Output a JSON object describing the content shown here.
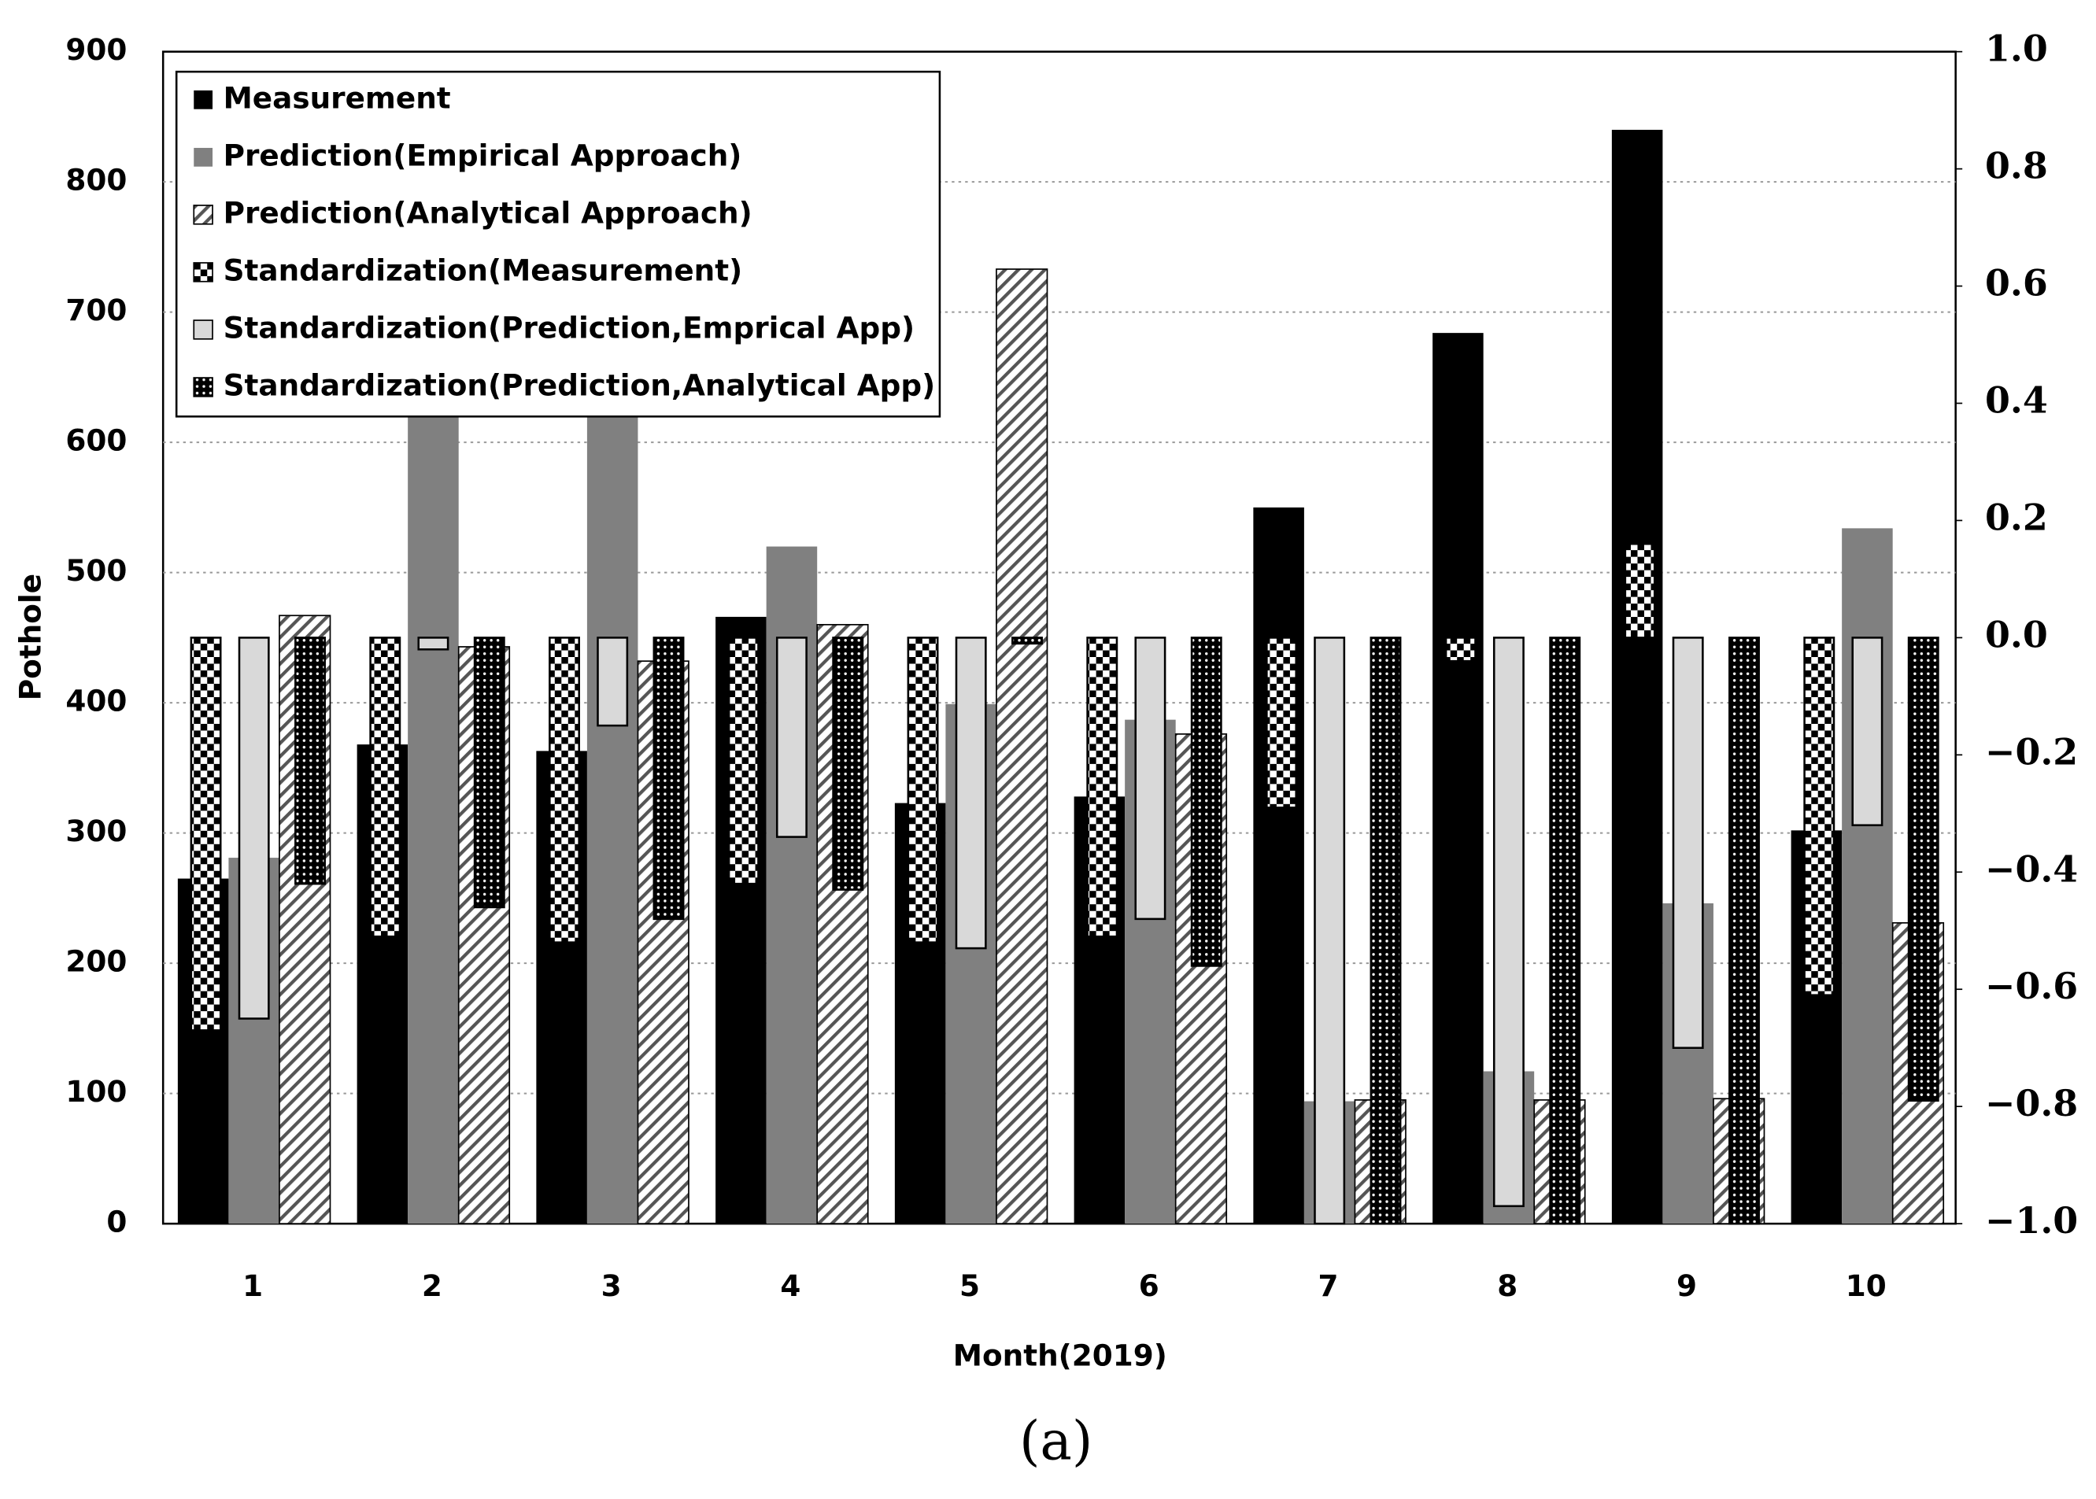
{
  "chart_data": {
    "type": "bar",
    "caption": "(a)",
    "x_label": "Month(2019)",
    "y_label": "Pothole",
    "categories": [
      "1",
      "2",
      "3",
      "4",
      "5",
      "6",
      "7",
      "8",
      "9",
      "10"
    ],
    "ylim": [
      0,
      900
    ],
    "yticks": [
      0,
      100,
      200,
      300,
      400,
      500,
      600,
      700,
      800,
      900
    ],
    "y2lim": [
      -1.0,
      1.0
    ],
    "y2ticks": [
      {
        "value": -1.0,
        "label": "−1.0"
      },
      {
        "value": -0.8,
        "label": "−0.8"
      },
      {
        "value": -0.6,
        "label": "−0.6"
      },
      {
        "value": -0.4,
        "label": "−0.4"
      },
      {
        "value": -0.2,
        "label": "−0.2"
      },
      {
        "value": 0,
        "label": "0.0"
      },
      {
        "value": 0.2,
        "label": "0.2"
      },
      {
        "value": 0.4,
        "label": "0.4"
      },
      {
        "value": 0.6,
        "label": "0.6"
      },
      {
        "value": 0.8,
        "label": "0.8"
      },
      {
        "value": 1.0,
        "label": "1.0"
      }
    ],
    "grid": true,
    "legend": "upper left",
    "series": [
      {
        "name": "Measurement",
        "color": "#000000",
        "pattern": "solid",
        "values": [
          265,
          368,
          363,
          466,
          323,
          328,
          550,
          684,
          840,
          302
        ]
      },
      {
        "name": "Prediction(Empirical Approach)",
        "color": "#808080",
        "pattern": "solid",
        "values": [
          281,
          650,
          650,
          520,
          399,
          387,
          94,
          117,
          246,
          534
        ]
      },
      {
        "name": "Prediction(Analytical Approach)",
        "color": "#555555",
        "pattern": "hatch",
        "values": [
          467,
          443,
          432,
          460,
          733,
          376,
          95,
          95,
          96,
          231
        ]
      },
      {
        "name": "Standardization(Measurement)",
        "color": "#000000",
        "pattern": "checker",
        "axis": "y2",
        "values": [
          -0.67,
          -0.51,
          -0.52,
          -0.42,
          -0.52,
          -0.51,
          -0.29,
          -0.04,
          0.16,
          -0.61
        ]
      },
      {
        "name": "Standardization(Prediction,Emprical App)",
        "color": "#d9d9d9",
        "pattern": "solid",
        "axis": "y2",
        "values": [
          -0.65,
          -0.02,
          -0.15,
          -0.34,
          -0.53,
          -0.48,
          -1.0,
          -0.97,
          -0.7,
          -0.32
        ]
      },
      {
        "name": "Standardization(Prediction,Analytical App)",
        "color": "#000000",
        "pattern": "dots",
        "axis": "y2",
        "values": [
          -0.42,
          -0.46,
          -0.48,
          -0.43,
          -0.01,
          -0.56,
          -1.0,
          -1.0,
          -1.0,
          -0.79
        ]
      }
    ]
  }
}
